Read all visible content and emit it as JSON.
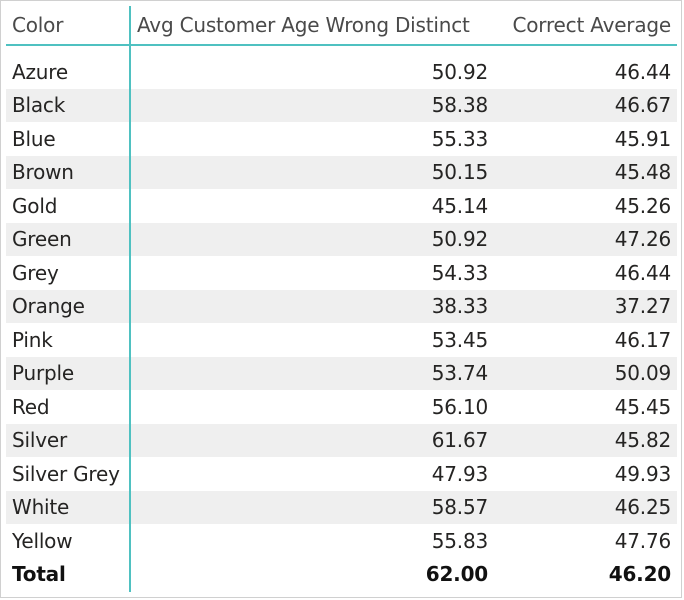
{
  "columns": {
    "color": "Color",
    "wrong": "Avg Customer Age Wrong Distinct",
    "correct": "Correct Average"
  },
  "rows": [
    {
      "color": "Azure",
      "wrong": "50.92",
      "correct": "46.44"
    },
    {
      "color": "Black",
      "wrong": "58.38",
      "correct": "46.67"
    },
    {
      "color": "Blue",
      "wrong": "55.33",
      "correct": "45.91"
    },
    {
      "color": "Brown",
      "wrong": "50.15",
      "correct": "45.48"
    },
    {
      "color": "Gold",
      "wrong": "45.14",
      "correct": "45.26"
    },
    {
      "color": "Green",
      "wrong": "50.92",
      "correct": "47.26"
    },
    {
      "color": "Grey",
      "wrong": "54.33",
      "correct": "46.44"
    },
    {
      "color": "Orange",
      "wrong": "38.33",
      "correct": "37.27"
    },
    {
      "color": "Pink",
      "wrong": "53.45",
      "correct": "46.17"
    },
    {
      "color": "Purple",
      "wrong": "53.74",
      "correct": "50.09"
    },
    {
      "color": "Red",
      "wrong": "56.10",
      "correct": "45.45"
    },
    {
      "color": "Silver",
      "wrong": "61.67",
      "correct": "45.82"
    },
    {
      "color": "Silver Grey",
      "wrong": "47.93",
      "correct": "49.93"
    },
    {
      "color": "White",
      "wrong": "58.57",
      "correct": "46.25"
    },
    {
      "color": "Yellow",
      "wrong": "55.83",
      "correct": "47.76"
    }
  ],
  "total": {
    "label": "Total",
    "wrong": "62.00",
    "correct": "46.20"
  },
  "colors": {
    "accent_line": "#4fc1c1",
    "alt_row": "#efefef"
  }
}
